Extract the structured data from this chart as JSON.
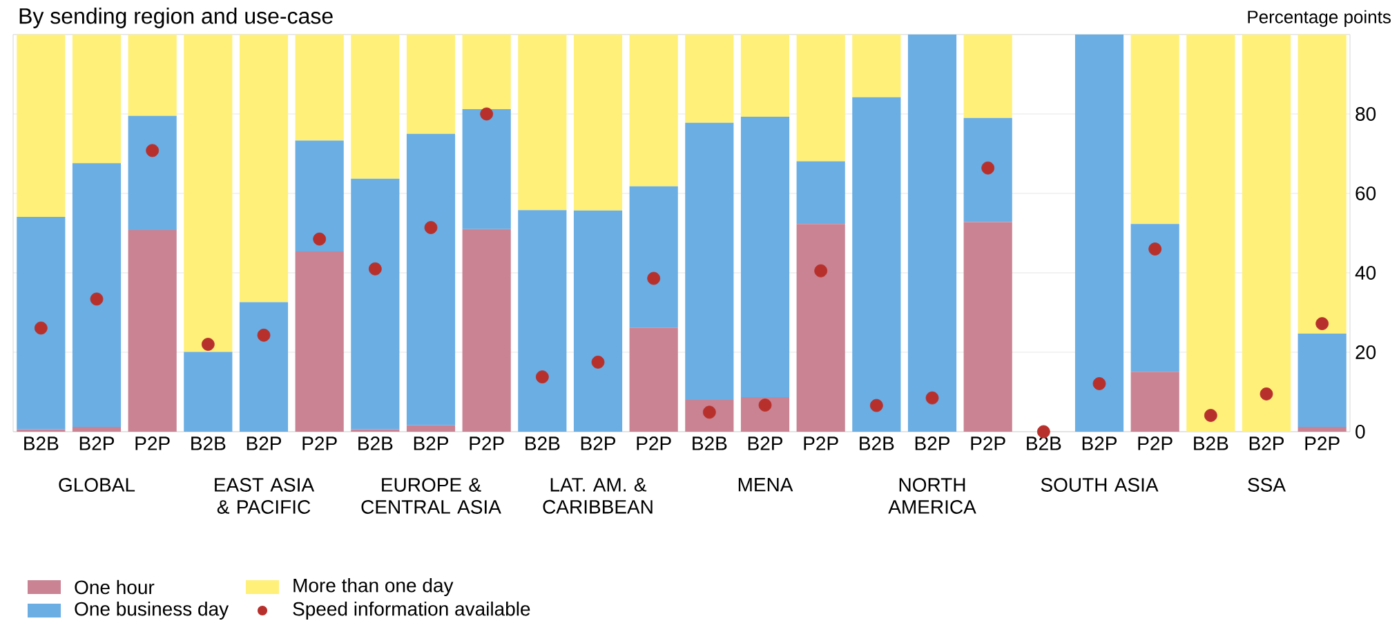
{
  "chart_data": {
    "type": "bar",
    "stacked": true,
    "title": "By sending region and use-case",
    "ylabel": "Percentage points",
    "categories": [
      "B2B",
      "B2P",
      "P2P",
      "B2B",
      "B2P",
      "P2P",
      "B2B",
      "B2P",
      "P2P",
      "B2B",
      "B2P",
      "P2P",
      "B2B",
      "B2P",
      "P2P",
      "B2B",
      "B2P",
      "P2P",
      "B2B",
      "B2P",
      "P2P",
      "B2B",
      "B2P",
      "P2P"
    ],
    "annotations": [
      "GLOBAL",
      "EAST ASIA & PACIFIC",
      "EUROPE & CENTRAL ASIA",
      "LAT. AM. & CARIBBEAN",
      "MENA",
      "NORTH AMERICA",
      "SOUTH ASIA",
      "SSA"
    ],
    "series": [
      {
        "name": "One hour",
        "color": "#c98393",
        "values": [
          0.6,
          1.2,
          50.8,
          0,
          0,
          45.4,
          0.6,
          1.6,
          51.0,
          0,
          0,
          26.2,
          8.0,
          8.7,
          52.3,
          0,
          0,
          52.8,
          0,
          0,
          15.1,
          0,
          0,
          1.2
        ]
      },
      {
        "name": "One business day",
        "color": "#6aaee4",
        "values": [
          53.5,
          66.4,
          28.7,
          20.1,
          32.6,
          27.9,
          63.1,
          73.4,
          30.2,
          55.8,
          55.7,
          35.6,
          69.8,
          70.6,
          15.8,
          84.2,
          100,
          26.2,
          0,
          100,
          37.2,
          0,
          0,
          23.5
        ]
      },
      {
        "name": "More than one day",
        "color": "#fff07a",
        "values": [
          45.9,
          32.4,
          20.5,
          79.9,
          67.4,
          26.7,
          36.3,
          25.0,
          18.8,
          44.2,
          44.3,
          38.2,
          22.2,
          20.7,
          31.9,
          15.8,
          0,
          21.0,
          0,
          0,
          47.7,
          100,
          100,
          75.3
        ]
      },
      {
        "name": "Speed information available",
        "type": "scatter",
        "marker": "circle",
        "color": "#b8302c",
        "values": [
          26.1,
          33.4,
          70.8,
          22.0,
          24.3,
          48.5,
          41.0,
          51.4,
          80.0,
          13.8,
          17.5,
          38.6,
          4.9,
          6.7,
          40.5,
          6.6,
          8.5,
          66.4,
          0,
          12.1,
          46.0,
          4.1,
          9.5,
          27.2
        ]
      }
    ],
    "ylim": [
      0,
      100
    ],
    "yticks": [
      0,
      20,
      40,
      60,
      80
    ],
    "grid": "y",
    "legend": "bottom left"
  }
}
